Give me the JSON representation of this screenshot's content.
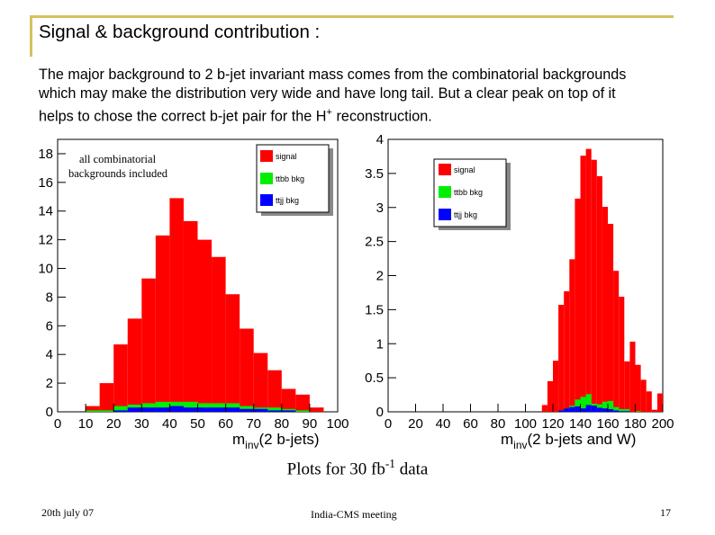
{
  "slide": {
    "title": "Signal & background contribution :",
    "body_lines": [
      "The major background to 2 b-jet invariant mass comes from the combinatorial backgrounds",
      "which may make the distribution very wide and have long tail.  But a clear peak on top of it",
      "helps to  chose the correct b-jet pair for the H"
    ],
    "body_sup": "+",
    "body_tail": " reconstruction.",
    "caption_main": "Plots for 30 fb",
    "caption_sup": "-1",
    "caption_tail": " data",
    "footer": {
      "date": "20th july 07",
      "meeting": "India-CMS meeting",
      "page": "17"
    },
    "colors": {
      "accent": "#d7c160",
      "signal": "#ff0000",
      "ttbb": "#00ee00",
      "ttjj": "#0000ff"
    }
  },
  "chart_data": [
    {
      "type": "bar",
      "stacked": true,
      "title": "",
      "xlabel_main": "m",
      "xlabel_sub": "inv",
      "xlabel_tail": "(2 b-jets)",
      "xlim": [
        0,
        100
      ],
      "ylim": [
        0,
        19
      ],
      "x_ticks": [
        "0",
        "10",
        "20",
        "30",
        "40",
        "50",
        "60",
        "70",
        "80",
        "90",
        "100"
      ],
      "y_ticks": [
        "0",
        "2",
        "4",
        "6",
        "8",
        "10",
        "12",
        "14",
        "16",
        "18"
      ],
      "annotation": [
        "all combinatorial",
        "backgrounds included"
      ],
      "legend": [
        "signal",
        "ttbb bkg",
        "ttjj bkg"
      ],
      "bin_edges": [
        10,
        15,
        20,
        25,
        30,
        35,
        40,
        45,
        50,
        55,
        60,
        65,
        70,
        75,
        80,
        85,
        90,
        95
      ],
      "series": [
        {
          "name": "ttjj bkg",
          "values": [
            0.0,
            0.0,
            0.1,
            0.3,
            0.3,
            0.3,
            0.4,
            0.3,
            0.3,
            0.3,
            0.3,
            0.2,
            0.2,
            0.1,
            0.1,
            0.0,
            0.0
          ]
        },
        {
          "name": "ttbb bkg",
          "values": [
            0.1,
            0.1,
            0.3,
            0.2,
            0.3,
            0.4,
            0.3,
            0.4,
            0.3,
            0.3,
            0.3,
            0.2,
            0.1,
            0.2,
            0.1,
            0.1,
            0.0
          ]
        },
        {
          "name": "signal",
          "values": [
            0.3,
            1.9,
            4.3,
            6.0,
            8.7,
            11.6,
            14.2,
            12.6,
            11.4,
            10.2,
            7.6,
            5.4,
            3.8,
            2.6,
            1.4,
            1.1,
            0.3
          ]
        }
      ]
    },
    {
      "type": "bar",
      "stacked": true,
      "title": "",
      "xlabel_main": "m",
      "xlabel_sub": "inv",
      "xlabel_tail": "(2 b-jets and W)",
      "xlim": [
        0,
        200
      ],
      "ylim": [
        0,
        4
      ],
      "x_ticks": [
        "0",
        "20",
        "40",
        "60",
        "80",
        "100",
        "120",
        "140",
        "160",
        "180",
        "200"
      ],
      "y_ticks": [
        "0",
        "0.5",
        "1",
        "1.5",
        "2",
        "2.5",
        "3",
        "3.5",
        "4"
      ],
      "legend": [
        "signal",
        "ttbb bkg",
        "ttjj bkg"
      ],
      "bin_edges": [
        112,
        116,
        120,
        124,
        128,
        132,
        136,
        140,
        144,
        148,
        152,
        156,
        160,
        164,
        168,
        172,
        176,
        180,
        184,
        188,
        192,
        196,
        200
      ],
      "series": [
        {
          "name": "ttjj bkg",
          "values": [
            0.0,
            0.0,
            0.0,
            0.02,
            0.05,
            0.07,
            0.08,
            0.05,
            0.1,
            0.09,
            0.06,
            0.05,
            0.04,
            0.02,
            0.01,
            0.01,
            0.0,
            0.0,
            0.0,
            0.0,
            0.0,
            0.0
          ]
        },
        {
          "name": "ttbb bkg",
          "values": [
            0.0,
            0.0,
            0.0,
            0.0,
            0.0,
            0.02,
            0.1,
            0.17,
            0.16,
            0.03,
            0.05,
            0.1,
            0.12,
            0.05,
            0.03,
            0.03,
            0.0,
            0.01,
            0.0,
            0.0,
            0.0,
            0.0
          ]
        },
        {
          "name": "signal",
          "values": [
            0.1,
            0.45,
            0.75,
            1.55,
            1.72,
            2.15,
            2.95,
            3.54,
            3.6,
            3.58,
            3.35,
            2.86,
            2.6,
            2.0,
            1.65,
            0.7,
            1.03,
            0.68,
            0.47,
            0.3,
            0.03,
            0.27
          ]
        }
      ]
    }
  ]
}
